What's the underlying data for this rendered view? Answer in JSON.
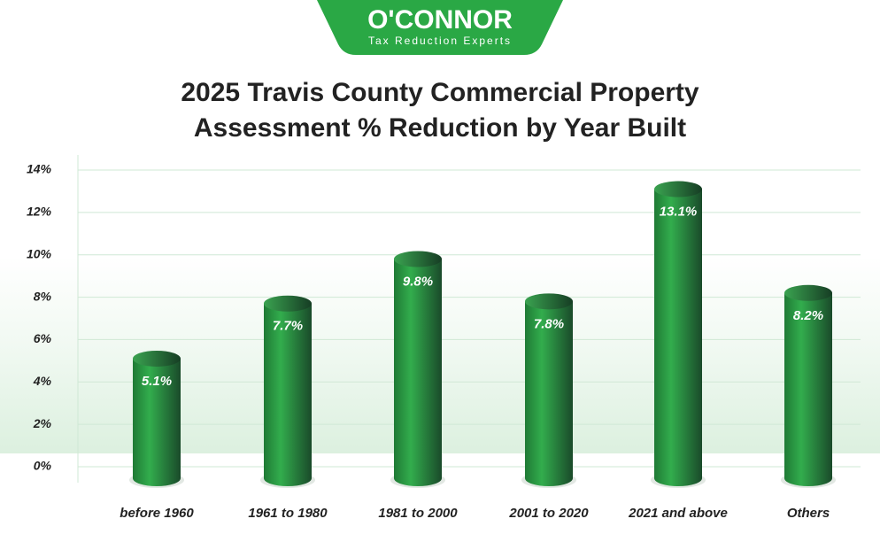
{
  "logo": {
    "name": "O'CONNOR",
    "tagline": "Tax Reduction Experts"
  },
  "chart_data": {
    "type": "bar",
    "title": "2025 Travis County Commercial Property Assessment % Reduction by Year Built",
    "categories": [
      "before 1960",
      "1961 to 1980",
      "1981 to 2000",
      "2001 to 2020",
      "2021 and above",
      "Others"
    ],
    "values": [
      5.1,
      7.7,
      9.8,
      7.8,
      13.1,
      8.2
    ],
    "value_labels": [
      "5.1%",
      "7.7%",
      "9.8%",
      "7.8%",
      "13.1%",
      "8.2%"
    ],
    "color": "#2a9a45",
    "ylim": [
      0,
      14
    ],
    "yticks": [
      {
        "value": 0,
        "label": "0%"
      },
      {
        "value": 2,
        "label": "2%"
      },
      {
        "value": 4,
        "label": "4%"
      },
      {
        "value": 6,
        "label": "6%"
      },
      {
        "value": 8,
        "label": "8%"
      },
      {
        "value": 10,
        "label": "10%"
      },
      {
        "value": 12,
        "label": "12%"
      },
      {
        "value": 14,
        "label": "14%"
      }
    ],
    "grid": true
  }
}
